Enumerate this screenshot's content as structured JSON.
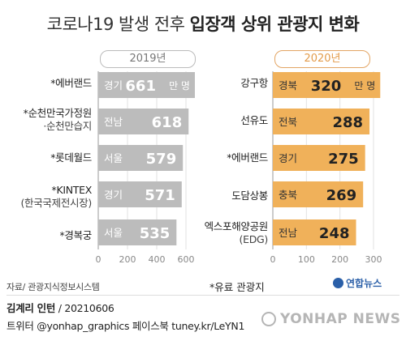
{
  "title": {
    "normal": "코로나19 발생 전후",
    "bold": "입장객 상위 관광지 변화"
  },
  "chart_data": [
    {
      "type": "bar",
      "orientation": "horizontal",
      "year_label": "2019년",
      "bar_color": "#bcbcbc",
      "xlim": [
        0,
        600
      ],
      "ticks": [
        "0",
        "200",
        "400",
        "600"
      ],
      "categories": [
        {
          "name": "*에버랜드",
          "sub": "",
          "region": "경기",
          "value": 661,
          "value_label": "661",
          "unit": "만 명"
        },
        {
          "name": "*순천만국가정원",
          "sub": "·순천만습지",
          "region": "전남",
          "value": 618,
          "value_label": "618",
          "unit": ""
        },
        {
          "name": "*롯데월드",
          "sub": "",
          "region": "서울",
          "value": 579,
          "value_label": "579",
          "unit": ""
        },
        {
          "name": "*KINTEX",
          "sub": "(한국국제전시장)",
          "region": "경기",
          "value": 571,
          "value_label": "571",
          "unit": ""
        },
        {
          "name": "*경복궁",
          "sub": "",
          "region": "서울",
          "value": 535,
          "value_label": "535",
          "unit": ""
        }
      ]
    },
    {
      "type": "bar",
      "orientation": "horizontal",
      "year_label": "2020년",
      "bar_color": "#f0b15a",
      "xlim": [
        0,
        300
      ],
      "ticks": [
        "0",
        "100",
        "200",
        "300"
      ],
      "categories": [
        {
          "name": "강구항",
          "sub": "",
          "region": "경북",
          "value": 320,
          "value_label": "320",
          "unit": "만 명"
        },
        {
          "name": "선유도",
          "sub": "",
          "region": "전북",
          "value": 288,
          "value_label": "288",
          "unit": ""
        },
        {
          "name": "*에버랜드",
          "sub": "",
          "region": "경기",
          "value": 275,
          "value_label": "275",
          "unit": ""
        },
        {
          "name": "도담상봉",
          "sub": "",
          "region": "충북",
          "value": 269,
          "value_label": "269",
          "unit": ""
        },
        {
          "name": "엑스포해양공원",
          "sub": "(EDG)",
          "region": "전남",
          "value": 248,
          "value_label": "248",
          "unit": ""
        }
      ]
    }
  ],
  "footer": {
    "source": "자료/ 관광지식정보시스템",
    "note": "*유료 관광지",
    "logo": "연합뉴스",
    "author_name": "김계리 인턴",
    "author_date": " / 20210606",
    "social": "트위터 @yonhap_graphics  페이스북 tuney.kr/LeYN1",
    "watermark": "YONHAP NEWS"
  }
}
